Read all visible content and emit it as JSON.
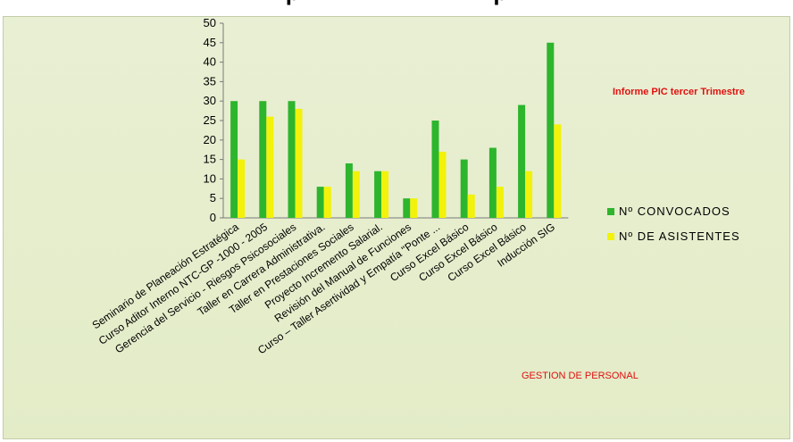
{
  "header": {
    "title": "p                              p"
  },
  "annotations": {
    "report_title": "Informe PIC tercer Trimestre",
    "footer_label": "GESTION DE PERSONAL"
  },
  "colors": {
    "background": "#e6edcc",
    "convocados": "#2db52d",
    "asistentes": "#f2f20a",
    "annotation": "#e01010"
  },
  "chart_data": {
    "type": "bar",
    "title": "",
    "xlabel": "",
    "ylabel": "",
    "ylim": [
      0,
      50
    ],
    "yticks": [
      0,
      5,
      10,
      15,
      20,
      25,
      30,
      35,
      40,
      45,
      50
    ],
    "grid": false,
    "legend_position": "right",
    "categories": [
      "Seminario de Planeación Estratégica",
      "Curso Aditor Interno NTC-GP -1000 - 2005",
      "Gerencia del Servicio - Riesgos Psicosociales",
      "Taller en Carrera Administrativa.",
      "Taller en Prestaciones Sociales",
      "Proyecto Incremento Salarial.",
      "Revisión del Manual de Funciones",
      "Curso – Taller Asertividad y Empatía \"Ponte ...",
      "Curso Excel Básico",
      "Curso Excel Básico",
      "Curso Excel Básico",
      "Inducción SIG"
    ],
    "series": [
      {
        "name": "Nº CONVOCADOS",
        "values": [
          30,
          30,
          30,
          8,
          14,
          12,
          5,
          25,
          15,
          18,
          29,
          45
        ]
      },
      {
        "name": "Nº DE ASISTENTES",
        "values": [
          15,
          26,
          28,
          8,
          12,
          12,
          5,
          17,
          6,
          8,
          12,
          24
        ]
      }
    ]
  }
}
